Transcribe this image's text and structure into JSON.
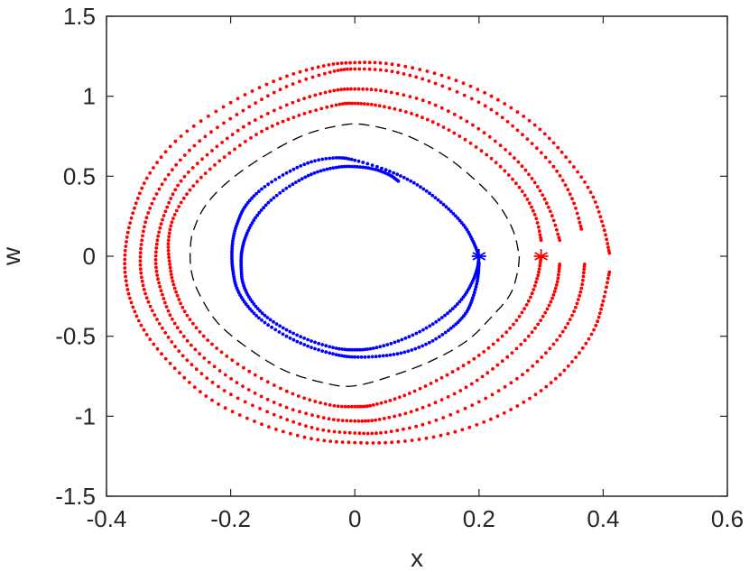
{
  "chart_data": {
    "type": "scatter",
    "title": "",
    "xlabel": "x",
    "ylabel": "w",
    "xlim": [
      -0.4,
      0.6
    ],
    "ylim": [
      -1.5,
      1.5
    ],
    "xticks": [
      "-0.4",
      "-0.2",
      "0",
      "0.2",
      "0.4",
      "0.6"
    ],
    "yticks": [
      "1.5",
      "1",
      "0.5",
      "0",
      "-0.5",
      "-1",
      "-1.5"
    ],
    "grid": false,
    "legend": "none",
    "series": [
      {
        "kind": "dashed-curve",
        "color": "#000000",
        "points": [
          [
            0.265,
            0.0
          ],
          [
            0.262,
            -0.1
          ],
          [
            0.25,
            -0.24
          ],
          [
            0.22,
            -0.38
          ],
          [
            0.18,
            -0.53
          ],
          [
            0.12,
            -0.66
          ],
          [
            0.05,
            -0.76
          ],
          [
            0.0,
            -0.81
          ],
          [
            -0.04,
            -0.8
          ],
          [
            -0.11,
            -0.72
          ],
          [
            -0.17,
            -0.58
          ],
          [
            -0.22,
            -0.42
          ],
          [
            -0.25,
            -0.24
          ],
          [
            -0.263,
            -0.1
          ],
          [
            -0.265,
            0.04
          ],
          [
            -0.26,
            0.16
          ],
          [
            -0.24,
            0.32
          ],
          [
            -0.2,
            0.48
          ],
          [
            -0.14,
            0.64
          ],
          [
            -0.08,
            0.76
          ],
          [
            -0.02,
            0.82
          ],
          [
            0.02,
            0.82
          ],
          [
            0.08,
            0.76
          ],
          [
            0.14,
            0.64
          ],
          [
            0.19,
            0.49
          ],
          [
            0.23,
            0.33
          ],
          [
            0.255,
            0.16
          ],
          [
            0.265,
            0.0
          ]
        ]
      },
      {
        "kind": "spiral-dots",
        "color": "#0000ff",
        "points": [
          [
            0.2,
            0.0
          ],
          [
            0.197,
            -0.08
          ],
          [
            0.188,
            -0.17
          ],
          [
            0.172,
            -0.27
          ],
          [
            0.145,
            -0.37
          ],
          [
            0.11,
            -0.46
          ],
          [
            0.07,
            -0.53
          ],
          [
            0.03,
            -0.575
          ],
          [
            0.0,
            -0.585
          ],
          [
            -0.03,
            -0.575
          ],
          [
            -0.07,
            -0.53
          ],
          [
            -0.11,
            -0.46
          ],
          [
            -0.145,
            -0.37
          ],
          [
            -0.168,
            -0.27
          ],
          [
            -0.18,
            -0.17
          ],
          [
            -0.183,
            -0.07
          ],
          [
            -0.182,
            0.03
          ],
          [
            -0.175,
            0.13
          ],
          [
            -0.16,
            0.24
          ],
          [
            -0.135,
            0.35
          ],
          [
            -0.1,
            0.45
          ],
          [
            -0.065,
            0.52
          ],
          [
            -0.03,
            0.555
          ],
          [
            0.0,
            0.56
          ],
          [
            0.03,
            0.545
          ],
          [
            0.055,
            0.51
          ],
          [
            0.07,
            0.47
          ]
        ]
      },
      {
        "kind": "spiral-dots",
        "color": "#0000ff",
        "points": [
          [
            0.2,
            0.0
          ],
          [
            0.192,
            0.08
          ],
          [
            0.178,
            0.18
          ],
          [
            0.155,
            0.28
          ],
          [
            0.125,
            0.38
          ],
          [
            0.09,
            0.47
          ],
          [
            0.05,
            0.54
          ],
          [
            0.0,
            0.6
          ],
          [
            -0.03,
            0.615
          ],
          [
            -0.07,
            0.59
          ],
          [
            -0.11,
            0.52
          ],
          [
            -0.15,
            0.42
          ],
          [
            -0.175,
            0.32
          ],
          [
            -0.188,
            0.22
          ],
          [
            -0.196,
            0.11
          ],
          [
            -0.198,
            0.0
          ],
          [
            -0.196,
            -0.1
          ],
          [
            -0.19,
            -0.2
          ],
          [
            -0.175,
            -0.3
          ],
          [
            -0.15,
            -0.4
          ],
          [
            -0.11,
            -0.5
          ],
          [
            -0.07,
            -0.57
          ],
          [
            -0.03,
            -0.615
          ],
          [
            0.0,
            -0.63
          ],
          [
            0.04,
            -0.625
          ],
          [
            0.08,
            -0.6
          ],
          [
            0.12,
            -0.54
          ],
          [
            0.155,
            -0.45
          ],
          [
            0.178,
            -0.36
          ],
          [
            0.19,
            -0.26
          ],
          [
            0.198,
            -0.14
          ],
          [
            0.2,
            -0.04
          ]
        ]
      },
      {
        "kind": "spiral-dots",
        "color": "#ff0000",
        "points": [
          [
            0.3,
            0.0
          ],
          [
            0.295,
            -0.12
          ],
          [
            0.28,
            -0.28
          ],
          [
            0.25,
            -0.45
          ],
          [
            0.2,
            -0.62
          ],
          [
            0.14,
            -0.76
          ],
          [
            0.08,
            -0.87
          ],
          [
            0.03,
            -0.93
          ],
          [
            0.0,
            -0.94
          ],
          [
            -0.04,
            -0.93
          ],
          [
            -0.1,
            -0.86
          ],
          [
            -0.17,
            -0.72
          ],
          [
            -0.23,
            -0.55
          ],
          [
            -0.27,
            -0.37
          ],
          [
            -0.29,
            -0.2
          ],
          [
            -0.298,
            -0.05
          ],
          [
            -0.3,
            0.1
          ],
          [
            -0.29,
            0.26
          ],
          [
            -0.26,
            0.44
          ],
          [
            -0.21,
            0.62
          ],
          [
            -0.15,
            0.78
          ],
          [
            -0.09,
            0.88
          ],
          [
            -0.03,
            0.945
          ],
          [
            0.0,
            0.955
          ],
          [
            0.04,
            0.94
          ],
          [
            0.1,
            0.88
          ],
          [
            0.16,
            0.77
          ],
          [
            0.22,
            0.61
          ],
          [
            0.265,
            0.43
          ],
          [
            0.29,
            0.26
          ],
          [
            0.3,
            0.1
          ]
        ]
      },
      {
        "kind": "spiral-dots",
        "color": "#ff0000",
        "points": [
          [
            0.33,
            -0.05
          ],
          [
            0.325,
            -0.18
          ],
          [
            0.31,
            -0.33
          ],
          [
            0.28,
            -0.5
          ],
          [
            0.23,
            -0.68
          ],
          [
            0.17,
            -0.84
          ],
          [
            0.1,
            -0.96
          ],
          [
            0.04,
            -1.02
          ],
          [
            0.0,
            -1.03
          ],
          [
            -0.05,
            -1.01
          ],
          [
            -0.12,
            -0.93
          ],
          [
            -0.19,
            -0.79
          ],
          [
            -0.25,
            -0.61
          ],
          [
            -0.29,
            -0.42
          ],
          [
            -0.31,
            -0.24
          ],
          [
            -0.32,
            -0.07
          ],
          [
            -0.318,
            0.1
          ],
          [
            -0.305,
            0.28
          ],
          [
            -0.28,
            0.47
          ],
          [
            -0.23,
            0.66
          ],
          [
            -0.17,
            0.83
          ],
          [
            -0.1,
            0.96
          ],
          [
            -0.04,
            1.03
          ],
          [
            0.0,
            1.045
          ],
          [
            0.05,
            1.03
          ],
          [
            0.12,
            0.96
          ],
          [
            0.19,
            0.82
          ],
          [
            0.25,
            0.64
          ],
          [
            0.29,
            0.46
          ],
          [
            0.315,
            0.28
          ],
          [
            0.33,
            0.1
          ]
        ]
      },
      {
        "kind": "spiral-dots",
        "color": "#ff0000",
        "points": [
          [
            0.37,
            -0.05
          ],
          [
            0.365,
            -0.2
          ],
          [
            0.35,
            -0.37
          ],
          [
            0.32,
            -0.55
          ],
          [
            0.27,
            -0.74
          ],
          [
            0.2,
            -0.91
          ],
          [
            0.12,
            -1.04
          ],
          [
            0.05,
            -1.1
          ],
          [
            0.0,
            -1.105
          ],
          [
            -0.06,
            -1.08
          ],
          [
            -0.13,
            -0.99
          ],
          [
            -0.21,
            -0.84
          ],
          [
            -0.27,
            -0.65
          ],
          [
            -0.31,
            -0.45
          ],
          [
            -0.335,
            -0.26
          ],
          [
            -0.345,
            -0.08
          ],
          [
            -0.343,
            0.1
          ],
          [
            -0.33,
            0.3
          ],
          [
            -0.3,
            0.51
          ],
          [
            -0.25,
            0.72
          ],
          [
            -0.18,
            0.91
          ],
          [
            -0.11,
            1.06
          ],
          [
            -0.04,
            1.15
          ],
          [
            0.0,
            1.17
          ],
          [
            0.06,
            1.155
          ],
          [
            0.13,
            1.08
          ],
          [
            0.21,
            0.94
          ],
          [
            0.27,
            0.76
          ],
          [
            0.32,
            0.56
          ],
          [
            0.35,
            0.36
          ],
          [
            0.365,
            0.17
          ]
        ]
      },
      {
        "kind": "spiral-dots",
        "color": "#ff0000",
        "points": [
          [
            0.41,
            -0.1
          ],
          [
            0.4,
            -0.28
          ],
          [
            0.385,
            -0.46
          ],
          [
            0.35,
            -0.66
          ],
          [
            0.3,
            -0.84
          ],
          [
            0.23,
            -1.0
          ],
          [
            0.15,
            -1.11
          ],
          [
            0.07,
            -1.16
          ],
          [
            0.0,
            -1.165
          ],
          [
            -0.07,
            -1.14
          ],
          [
            -0.15,
            -1.05
          ],
          [
            -0.23,
            -0.9
          ],
          [
            -0.29,
            -0.7
          ],
          [
            -0.335,
            -0.49
          ],
          [
            -0.36,
            -0.29
          ],
          [
            -0.37,
            -0.1
          ],
          [
            -0.368,
            0.09
          ],
          [
            -0.355,
            0.3
          ],
          [
            -0.33,
            0.52
          ],
          [
            -0.28,
            0.75
          ],
          [
            -0.2,
            0.96
          ],
          [
            -0.12,
            1.11
          ],
          [
            -0.05,
            1.19
          ],
          [
            0.0,
            1.21
          ],
          [
            0.06,
            1.2
          ],
          [
            0.14,
            1.13
          ],
          [
            0.22,
            1.0
          ],
          [
            0.29,
            0.82
          ],
          [
            0.34,
            0.62
          ],
          [
            0.38,
            0.4
          ],
          [
            0.4,
            0.19
          ],
          [
            0.41,
            0.02
          ]
        ]
      }
    ],
    "markers": [
      {
        "x": 0.2,
        "y": 0.0,
        "symbol": "asterisk",
        "color": "#0000ff"
      },
      {
        "x": 0.3,
        "y": 0.0,
        "symbol": "asterisk",
        "color": "#ff0000"
      }
    ]
  }
}
